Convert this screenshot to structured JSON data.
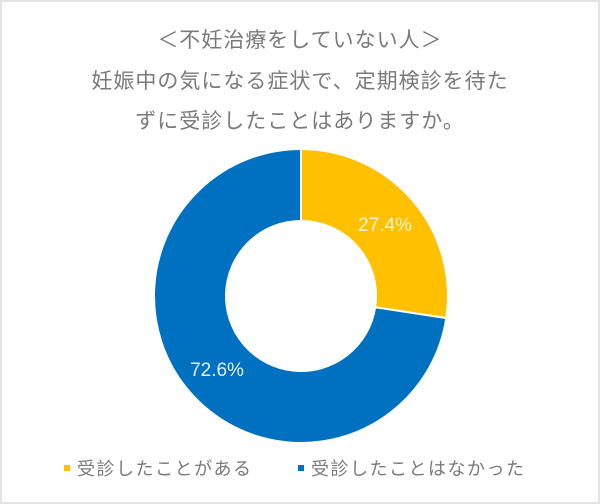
{
  "title": {
    "line1": "＜不妊治療をしていない人＞",
    "line2": "妊娠中の気になる症状で、定期検診を待た",
    "line3": "ずに受診したことはありますか。"
  },
  "colors": {
    "yes": "#FFC000",
    "no": "#0070C0",
    "label_on_yes": "#FFF4D6",
    "label_on_no": "#E6F1FA",
    "text": "#7a7a7a"
  },
  "legend": [
    {
      "label": "受診したことがある",
      "color": "#FFC000"
    },
    {
      "label": "受診したことはなかった",
      "color": "#0070C0"
    }
  ],
  "labels": {
    "yes_pct": "27.4%",
    "no_pct": "72.6%"
  },
  "chart_data": {
    "type": "pie",
    "subtype": "donut",
    "title": "＜不妊治療をしていない人＞ 妊娠中の気になる症状で、定期検診を待たずに受診したことはありますか。",
    "categories": [
      "受診したことがある",
      "受診したことはなかった"
    ],
    "values": [
      27.4,
      72.6
    ],
    "unit": "%",
    "data_labels": [
      "27.4%",
      "72.6%"
    ],
    "colors": [
      "#FFC000",
      "#0070C0"
    ],
    "start_angle": "12 o'clock, clockwise",
    "legend_position": "bottom"
  }
}
